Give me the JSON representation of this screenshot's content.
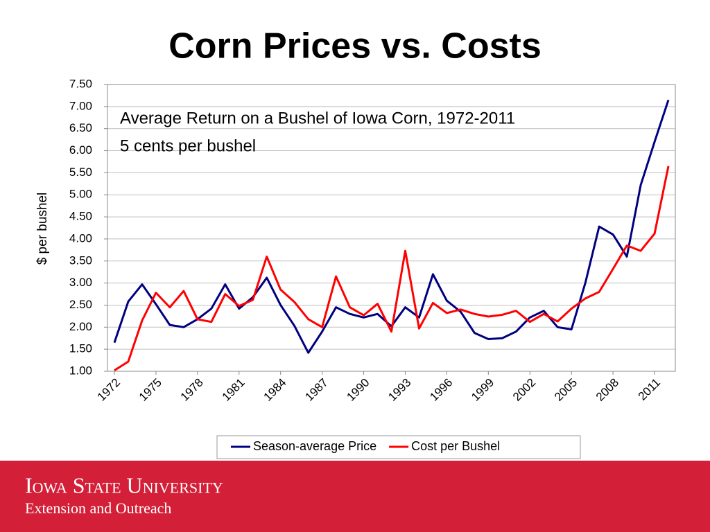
{
  "chart_data": {
    "type": "line",
    "title": "Corn Prices vs. Costs",
    "annotations": [
      "Average Return on a Bushel of Iowa Corn, 1972-2011",
      "5 cents per bushel"
    ],
    "ylabel": "$ per bushel",
    "x": [
      1972,
      1973,
      1974,
      1975,
      1976,
      1977,
      1978,
      1979,
      1980,
      1981,
      1982,
      1983,
      1984,
      1985,
      1986,
      1987,
      1988,
      1989,
      1990,
      1991,
      1992,
      1993,
      1994,
      1995,
      1996,
      1997,
      1998,
      1999,
      2000,
      2001,
      2002,
      2003,
      2004,
      2005,
      2006,
      2007,
      2008,
      2009,
      2010,
      2011,
      2012
    ],
    "xlim": [
      1971.5,
      2012.5
    ],
    "xticks": [
      1972,
      1975,
      1978,
      1981,
      1984,
      1987,
      1990,
      1993,
      1996,
      1999,
      2002,
      2005,
      2008,
      2011
    ],
    "ylim": [
      1,
      7.5
    ],
    "yticks": [
      {
        "value": 1,
        "label": "1.00"
      },
      {
        "value": 1.5,
        "label": "1.50"
      },
      {
        "value": 2,
        "label": "2.00"
      },
      {
        "value": 2.5,
        "label": "2.50"
      },
      {
        "value": 3,
        "label": "3.00"
      },
      {
        "value": 3.5,
        "label": "3.50"
      },
      {
        "value": 4,
        "label": "4.00"
      },
      {
        "value": 4.5,
        "label": "4.50"
      },
      {
        "value": 5,
        "label": "5.00"
      },
      {
        "value": 5.5,
        "label": "5.50"
      },
      {
        "value": 6,
        "label": "6.00"
      },
      {
        "value": 6.5,
        "label": "6.50"
      },
      {
        "value": 7,
        "label": "7.00"
      },
      {
        "value": 7.5,
        "label": "7.50"
      }
    ],
    "grid": true,
    "legend": "bottom",
    "series": [
      {
        "name": "Season-average Price",
        "color": "#000080",
        "values": [
          1.65,
          2.58,
          2.97,
          2.52,
          2.05,
          2.0,
          2.18,
          2.42,
          2.97,
          2.42,
          2.68,
          3.12,
          2.5,
          2.03,
          1.42,
          1.9,
          2.45,
          2.3,
          2.22,
          2.3,
          2.02,
          2.45,
          2.22,
          3.2,
          2.6,
          2.35,
          1.87,
          1.73,
          1.75,
          1.9,
          2.22,
          2.37,
          2.0,
          1.95,
          3.0,
          4.28,
          4.1,
          3.6,
          5.22,
          6.2,
          7.15
        ]
      },
      {
        "name": "Cost per Bushel",
        "color": "#ff0000",
        "values": [
          1.02,
          1.22,
          2.15,
          2.78,
          2.45,
          2.82,
          2.18,
          2.12,
          2.75,
          2.48,
          2.62,
          3.6,
          2.85,
          2.57,
          2.18,
          2.0,
          3.15,
          2.45,
          2.27,
          2.53,
          1.9,
          3.73,
          1.97,
          2.55,
          2.32,
          2.4,
          2.3,
          2.24,
          2.28,
          2.37,
          2.12,
          2.3,
          2.13,
          2.42,
          2.65,
          2.8,
          3.32,
          3.85,
          3.73,
          4.12,
          5.65
        ]
      }
    ]
  },
  "footer": {
    "university": "Iowa State University",
    "unit": "Extension and Outreach"
  }
}
